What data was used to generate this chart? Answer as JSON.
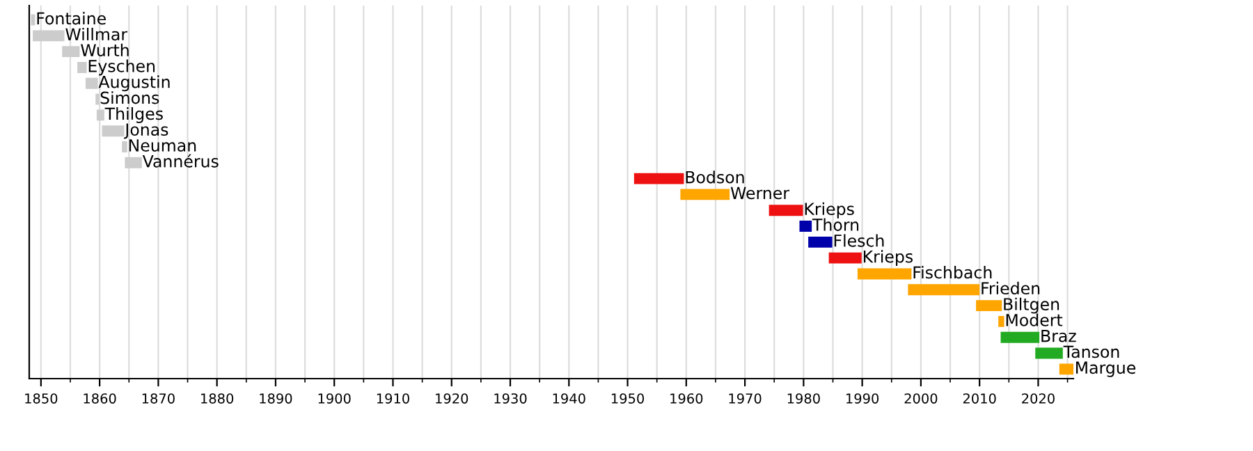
{
  "chart_data": {
    "type": "bar",
    "orientation": "horizontal",
    "categories": [
      "Fontaine",
      "Willmar",
      "Wurth",
      "Eyschen",
      "Augustin",
      "Simons",
      "Thilges",
      "Jonas",
      "Neuman",
      "Vannérus",
      "Bodson",
      "Werner",
      "Krieps",
      "Thorn",
      "Flesch",
      "Krieps",
      "Fischbach",
      "Frieden",
      "Biltgen",
      "Modert",
      "Braz",
      "Tanson",
      "Margue"
    ],
    "base": [
      1848.5,
      1848.8,
      1853.8,
      1856.4,
      1857.8,
      1859.5,
      1859.7,
      1860.6,
      1864.0,
      1864.5,
      1951.3,
      1959.2,
      1974.3,
      1979.5,
      1981.0,
      1984.5,
      1989.4,
      1998.0,
      2009.6,
      2013.4,
      2013.8,
      2019.7,
      2023.8
    ],
    "values": [
      0.3,
      5.0,
      2.6,
      1.2,
      1.7,
      0.2,
      0.9,
      3.4,
      0.5,
      2.5,
      8.1,
      8.0,
      5.4,
      1.7,
      3.7,
      5.2,
      8.8,
      11.8,
      4.0,
      0.6,
      6.2,
      4.3,
      2.1
    ],
    "colors": [
      "#cccccc",
      "#cccccc",
      "#cccccc",
      "#cccccc",
      "#cccccc",
      "#cccccc",
      "#cccccc",
      "#cccccc",
      "#cccccc",
      "#cccccc",
      "#ee1111",
      "#ffa500",
      "#ee1111",
      "#0000aa",
      "#0000aa",
      "#ee1111",
      "#ffa500",
      "#ffa500",
      "#ffa500",
      "#ffa500",
      "#22aa22",
      "#22aa22",
      "#ffa500"
    ],
    "xlim": [
      1848,
      2026
    ],
    "xticks": [
      1850,
      1860,
      1870,
      1880,
      1890,
      1900,
      1910,
      1920,
      1930,
      1940,
      1950,
      1960,
      1970,
      1980,
      1990,
      2000,
      2010,
      2020
    ],
    "grid": "x",
    "tick_labels": "x"
  }
}
